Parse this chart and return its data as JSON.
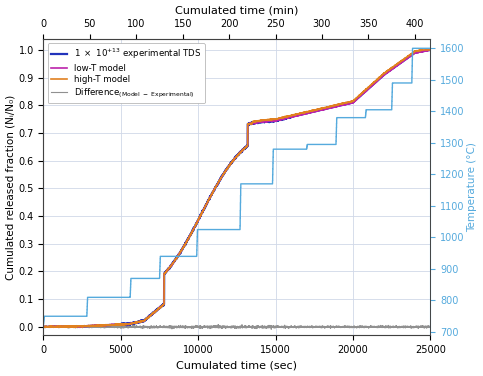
{
  "title_top": "Cumulated time (min)",
  "xlabel": "Cumulated time (sec)",
  "ylabel_left": "Cumulated released fraction (Nᵢ/N₀)",
  "ylabel_right": "Temperature (°C)",
  "xlim": [
    0,
    25000
  ],
  "ylim_left": [
    -0.03,
    1.04
  ],
  "ylim_right": [
    690,
    1630
  ],
  "legend_colors": [
    "#2233bb",
    "#bb22aa",
    "#e08020",
    "#909090"
  ],
  "temp_color": "#55aadd",
  "grid_color": "#d0d8e8",
  "background_color": "#ffffff",
  "temp_steps_t": [
    0,
    50,
    2800,
    2850,
    5600,
    5650,
    7500,
    7550,
    9900,
    9950,
    12700,
    12750,
    14800,
    14850,
    17000,
    17050,
    18900,
    18950,
    20800,
    20850,
    22500,
    22550,
    23800,
    23850,
    25000
  ],
  "temp_steps_v": [
    725,
    750,
    750,
    810,
    810,
    870,
    870,
    940,
    940,
    1025,
    1025,
    1170,
    1170,
    1280,
    1280,
    1295,
    1295,
    1380,
    1380,
    1405,
    1405,
    1490,
    1490,
    1600,
    1600
  ]
}
